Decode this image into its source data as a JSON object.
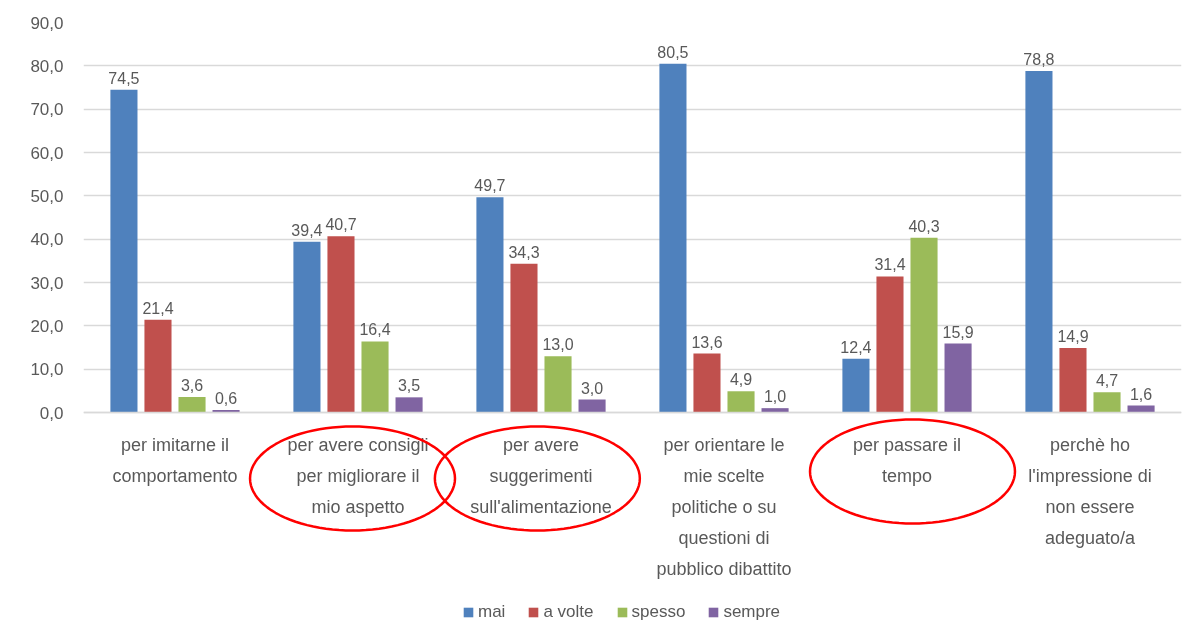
{
  "chart_data": {
    "type": "bar",
    "categories": [
      "per imitarne il comportamento",
      "per avere consigli per migliorare il mio aspetto",
      "per avere suggerimenti sull'alimentazione",
      "per orientare le mie scelte politiche o su questioni di pubblico dibattito",
      "per passare il tempo",
      "perchè ho l'impressione di non essere adeguato/a"
    ],
    "series": [
      {
        "name": "mai",
        "color": "#4f81bd",
        "values": [
          74.5,
          39.4,
          49.7,
          80.5,
          12.4,
          78.8
        ],
        "value_labels": [
          "74,5",
          "39,4",
          "49,7",
          "80,5",
          "12,4",
          "78,8"
        ]
      },
      {
        "name": "a volte",
        "color": "#c0504d",
        "values": [
          21.4,
          40.7,
          34.3,
          13.6,
          31.4,
          14.9
        ],
        "value_labels": [
          "21,4",
          "40,7",
          "34,3",
          "13,6",
          "31,4",
          "14,9"
        ]
      },
      {
        "name": "spesso",
        "color": "#9bbb59",
        "values": [
          3.6,
          16.4,
          13.0,
          4.9,
          40.3,
          4.7
        ],
        "value_labels": [
          "3,6",
          "16,4",
          "13,0",
          "4,9",
          "40,3",
          "4,7"
        ]
      },
      {
        "name": "sempre",
        "color": "#8064a2",
        "values": [
          0.6,
          3.5,
          3.0,
          1.0,
          15.9,
          1.6
        ],
        "value_labels": [
          "0,6",
          "3,5",
          "3,0",
          "1,0",
          "15,9",
          "1,6"
        ]
      }
    ],
    "ylim": [
      0,
      90
    ],
    "yticks": [
      {
        "value": 0,
        "label": "0,0"
      },
      {
        "value": 10,
        "label": "10,0"
      },
      {
        "value": 20,
        "label": "20,0"
      },
      {
        "value": 30,
        "label": "30,0"
      },
      {
        "value": 40,
        "label": "40,0"
      },
      {
        "value": 50,
        "label": "50,0"
      },
      {
        "value": 60,
        "label": "60,0"
      },
      {
        "value": 70,
        "label": "70,0"
      },
      {
        "value": 80,
        "label": "80,0"
      },
      {
        "value": 90,
        "label": "90,0"
      }
    ],
    "grid": "y",
    "legend": "bottom"
  }
}
